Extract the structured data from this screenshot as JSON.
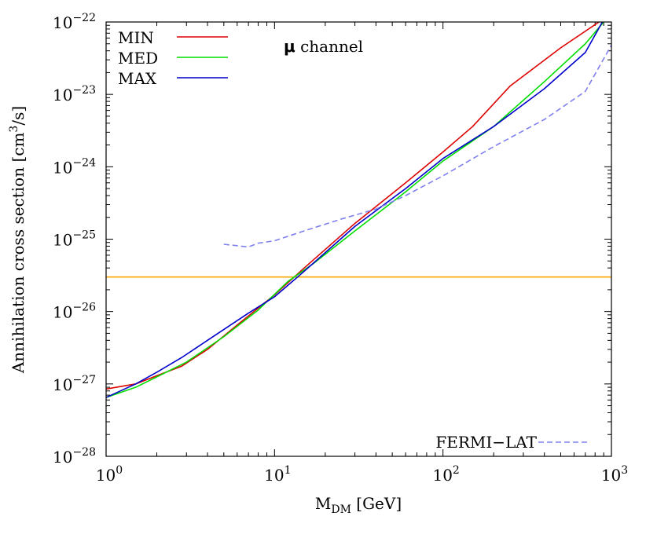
{
  "chart_data": {
    "type": "line",
    "title": "",
    "xlabel": {
      "main": "M",
      "sub": "DM",
      "unit": " [GeV]"
    },
    "ylabel": {
      "prefix": "Annihilation cross section [cm",
      "sup": "3",
      "suffix": "/s]"
    },
    "x_scale": "log",
    "y_scale": "log",
    "xlim": [
      1,
      1000
    ],
    "ylim": [
      1e-28,
      1e-22
    ],
    "x_ticks": [
      {
        "value": 1,
        "base": "10",
        "exp": "0"
      },
      {
        "value": 10,
        "base": "10",
        "exp": "1"
      },
      {
        "value": 100,
        "base": "10",
        "exp": "2"
      },
      {
        "value": 1000,
        "base": "10",
        "exp": "3"
      }
    ],
    "y_ticks": [
      {
        "value": 1e-28,
        "base": "10",
        "exp": "−28"
      },
      {
        "value": 1e-27,
        "base": "10",
        "exp": "−27"
      },
      {
        "value": 1e-26,
        "base": "10",
        "exp": "−26"
      },
      {
        "value": 1e-25,
        "base": "10",
        "exp": "−25"
      },
      {
        "value": 1e-24,
        "base": "10",
        "exp": "−24"
      },
      {
        "value": 1e-23,
        "base": "10",
        "exp": "−23"
      },
      {
        "value": 1e-22,
        "base": "10",
        "exp": "−22"
      }
    ],
    "grid": false,
    "legend_position": "top-left",
    "annotation": {
      "symbol": "μ",
      "text": " channel"
    },
    "series": [
      {
        "name": "MIN",
        "color": "#dd0000",
        "dash": false,
        "points": [
          [
            1,
            8.5e-28
          ],
          [
            1.5,
            1e-27
          ],
          [
            2,
            1.3e-27
          ],
          [
            2.8,
            1.75e-27
          ],
          [
            4,
            3e-27
          ],
          [
            6,
            6.5e-27
          ],
          [
            10,
            1.7e-26
          ],
          [
            15,
            4e-26
          ],
          [
            30,
            1.65e-25
          ],
          [
            60,
            6e-25
          ],
          [
            100,
            1.6e-24
          ],
          [
            150,
            3.6e-24
          ],
          [
            250,
            1.3e-23
          ],
          [
            500,
            4.4e-23
          ],
          [
            870,
            1.05e-22
          ]
        ]
      },
      {
        "name": "MED",
        "color": "#00dd00",
        "dash": false,
        "points": [
          [
            1,
            6.5e-28
          ],
          [
            1.5,
            9e-28
          ],
          [
            2,
            1.25e-27
          ],
          [
            3,
            2e-27
          ],
          [
            5,
            4.5e-27
          ],
          [
            8,
            1.05e-26
          ],
          [
            12,
            2.6e-26
          ],
          [
            17,
            4.6e-26
          ],
          [
            30,
            1.3e-25
          ],
          [
            60,
            4.5e-25
          ],
          [
            100,
            1.2e-24
          ],
          [
            200,
            3.6e-24
          ],
          [
            400,
            1.5e-23
          ],
          [
            700,
            5e-23
          ],
          [
            900,
            1e-22
          ]
        ]
      },
      {
        "name": "MAX",
        "color": "#0000cc",
        "dash": false,
        "points": [
          [
            1,
            6.5e-28
          ],
          [
            1.5,
            1e-27
          ],
          [
            2,
            1.45e-27
          ],
          [
            2.8,
            2.3e-27
          ],
          [
            4,
            4e-27
          ],
          [
            7,
            9.5e-27
          ],
          [
            10,
            1.6e-26
          ],
          [
            15,
            3.6e-26
          ],
          [
            30,
            1.5e-25
          ],
          [
            60,
            5e-25
          ],
          [
            100,
            1.3e-24
          ],
          [
            200,
            3.6e-24
          ],
          [
            400,
            1.2e-23
          ],
          [
            700,
            3.8e-23
          ],
          [
            900,
            1.08e-22
          ]
        ]
      },
      {
        "name": "FERMI−LAT",
        "color": "#8080ee",
        "dash": true,
        "points": [
          [
            5,
            8.5e-26
          ],
          [
            7,
            7.8e-26
          ],
          [
            8,
            8.8e-26
          ],
          [
            10,
            9.5e-26
          ],
          [
            15,
            1.3e-25
          ],
          [
            25,
            1.9e-25
          ],
          [
            40,
            2.6e-25
          ],
          [
            60,
            4e-25
          ],
          [
            100,
            7.5e-25
          ],
          [
            200,
            1.9e-24
          ],
          [
            400,
            4.5e-24
          ],
          [
            700,
            1.1e-23
          ],
          [
            1000,
            4.8e-23
          ]
        ]
      }
    ],
    "reference_line": {
      "y": 3e-26,
      "color": "#ffa500"
    }
  }
}
